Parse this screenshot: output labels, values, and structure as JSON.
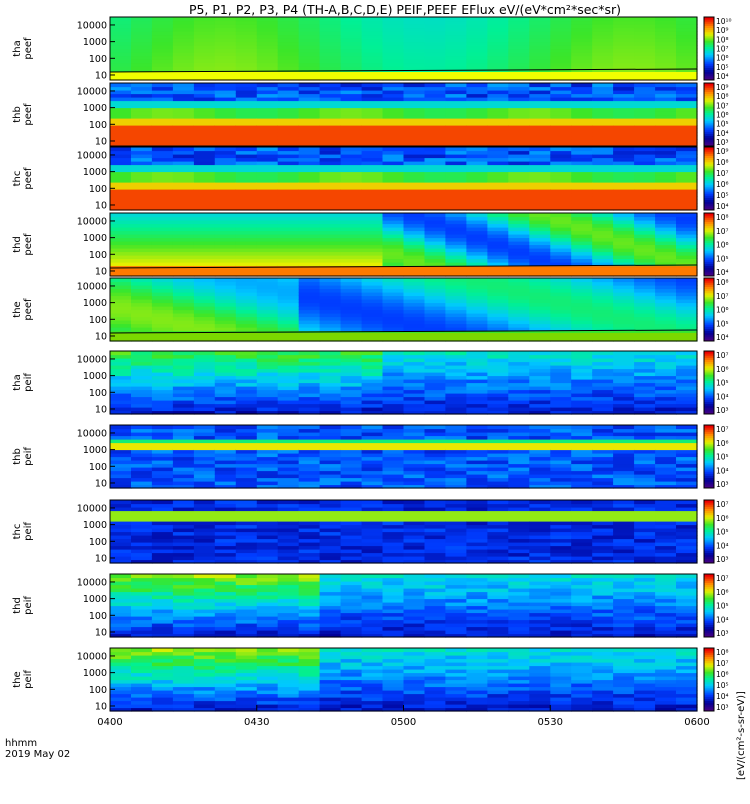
{
  "title": "P5, P1, P2, P3, P4 (TH-A,B,C,D,E) PEIF,PEEF EFlux eV/(eV*cm²*sec*sr)",
  "colorbar_unit": "[eV/(cm²-s-sr-eV)]",
  "time_axis": {
    "label_line1": "hhmm",
    "label_line2": "2019 May 02",
    "ticks": [
      "0400",
      "0430",
      "0500",
      "0530",
      "0600"
    ],
    "range": [
      "0400",
      "0600"
    ]
  },
  "chart_data": [
    {
      "type": "heatmap",
      "probe": "tha",
      "species": "peef",
      "ylabel_line1": "tha",
      "ylabel_line2": "peef",
      "yticks": [
        "10",
        "100",
        "1000",
        "10000"
      ],
      "yrange_eV": [
        5,
        30000
      ],
      "yscale": "log",
      "colorbar_ticks": [
        "10⁴",
        "10⁵",
        "10⁶",
        "10⁷",
        "10⁸",
        "10⁹",
        "10¹⁰"
      ],
      "profile": "electron_green",
      "bottom_band": "yellow"
    },
    {
      "type": "heatmap",
      "probe": "thb",
      "species": "peef",
      "ylabel_line1": "thb",
      "ylabel_line2": "peef",
      "yticks": [
        "10",
        "100",
        "1000",
        "10000"
      ],
      "yrange_eV": [
        5,
        30000
      ],
      "yscale": "log",
      "colorbar_ticks": [
        "10³",
        "10⁴",
        "10⁵",
        "10⁶",
        "10⁷",
        "10⁸",
        "10⁹"
      ],
      "profile": "electron_solar",
      "bottom_band": "none"
    },
    {
      "type": "heatmap",
      "probe": "thc",
      "species": "peef",
      "ylabel_line1": "thc",
      "ylabel_line2": "peef",
      "yticks": [
        "10",
        "100",
        "1000",
        "10000"
      ],
      "yrange_eV": [
        5,
        30000
      ],
      "yscale": "log",
      "colorbar_ticks": [
        "10⁴",
        "10⁵",
        "10⁶",
        "10⁷",
        "10⁸",
        "10⁹"
      ],
      "profile": "electron_solar",
      "bottom_band": "none"
    },
    {
      "type": "heatmap",
      "probe": "thd",
      "species": "peef",
      "ylabel_line1": "thd",
      "ylabel_line2": "peef",
      "yticks": [
        "10",
        "100",
        "1000",
        "10000"
      ],
      "yrange_eV": [
        5,
        30000
      ],
      "yscale": "log",
      "colorbar_ticks": [
        "10⁴",
        "10⁵",
        "10⁶",
        "10⁷",
        "10⁸"
      ],
      "profile": "electron_orange",
      "bottom_band": "orange"
    },
    {
      "type": "heatmap",
      "probe": "the",
      "species": "peef",
      "ylabel_line1": "the",
      "ylabel_line2": "peef",
      "yticks": [
        "10",
        "100",
        "1000",
        "10000"
      ],
      "yrange_eV": [
        5,
        30000
      ],
      "yscale": "log",
      "colorbar_ticks": [
        "10⁴",
        "10⁵",
        "10⁶",
        "10⁷",
        "10⁸"
      ],
      "profile": "electron_blue",
      "bottom_band": "green"
    },
    {
      "type": "heatmap",
      "probe": "tha",
      "species": "peif",
      "ylabel_line1": "tha",
      "ylabel_line2": "peif",
      "yticks": [
        "10",
        "100",
        "1000",
        "10000"
      ],
      "yrange_eV": [
        5,
        30000
      ],
      "yscale": "log",
      "colorbar_ticks": [
        "10³",
        "10⁴",
        "10⁵",
        "10⁶",
        "10⁷"
      ],
      "profile": "ion_a"
    },
    {
      "type": "heatmap",
      "probe": "thb",
      "species": "peif",
      "ylabel_line1": "thb",
      "ylabel_line2": "peif",
      "yticks": [
        "10",
        "100",
        "1000",
        "10000"
      ],
      "yrange_eV": [
        5,
        30000
      ],
      "yscale": "log",
      "colorbar_ticks": [
        "10³",
        "10⁴",
        "10⁵",
        "10⁶",
        "10⁷"
      ],
      "profile": "ion_solar"
    },
    {
      "type": "heatmap",
      "probe": "thc",
      "species": "peif",
      "ylabel_line1": "thc",
      "ylabel_line2": "peif",
      "yticks": [
        "10",
        "100",
        "1000",
        "10000"
      ],
      "yrange_eV": [
        5,
        30000
      ],
      "yscale": "log",
      "colorbar_ticks": [
        "10³",
        "10⁴",
        "10⁵",
        "10⁶",
        "10⁷"
      ],
      "profile": "ion_solar2"
    },
    {
      "type": "heatmap",
      "probe": "thd",
      "species": "peif",
      "ylabel_line1": "thd",
      "ylabel_line2": "peif",
      "yticks": [
        "10",
        "100",
        "1000",
        "10000"
      ],
      "yrange_eV": [
        5,
        30000
      ],
      "yscale": "log",
      "colorbar_ticks": [
        "10³",
        "10⁴",
        "10⁵",
        "10⁶",
        "10⁷"
      ],
      "profile": "ion_b"
    },
    {
      "type": "heatmap",
      "probe": "the",
      "species": "peif",
      "ylabel_line1": "the",
      "ylabel_line2": "peif",
      "yticks": [
        "10",
        "100",
        "1000",
        "10000"
      ],
      "yrange_eV": [
        5,
        30000
      ],
      "yscale": "log",
      "colorbar_ticks": [
        "10³",
        "10⁴",
        "10⁵",
        "10⁶",
        "10⁷",
        "10⁸"
      ],
      "profile": "ion_b"
    }
  ]
}
